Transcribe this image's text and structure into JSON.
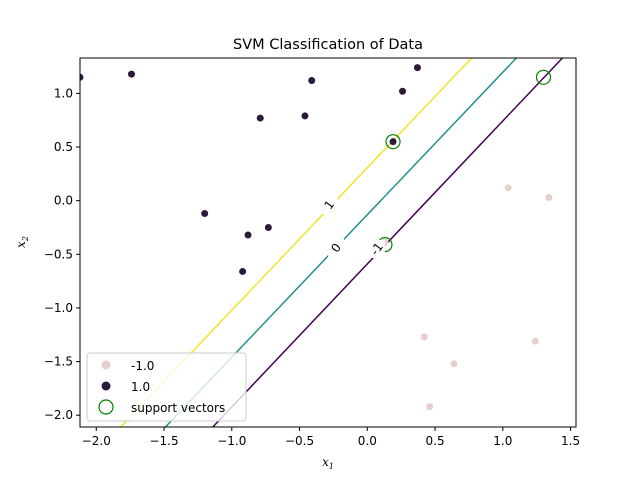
{
  "chart_data": {
    "type": "scatter",
    "title": "SVM Classification of Data",
    "xlabel": "x",
    "xlabel_sub": "1",
    "ylabel": "x",
    "ylabel_sub": "2",
    "xlim": [
      -2.12,
      1.54
    ],
    "ylim": [
      -2.11,
      1.33
    ],
    "xticks": [
      -2.0,
      -1.5,
      -1.0,
      -0.5,
      0.0,
      0.5,
      1.0,
      1.5
    ],
    "xtick_labels": [
      "−2.0",
      "−1.5",
      "−1.0",
      "−0.5",
      "0.0",
      "0.5",
      "1.0",
      "1.5"
    ],
    "yticks": [
      -2.0,
      -1.5,
      -1.0,
      -0.5,
      0.0,
      0.5,
      1.0
    ],
    "ytick_labels": [
      "−2.0",
      "−1.5",
      "−1.0",
      "−0.5",
      "0.0",
      "0.5",
      "1.0"
    ],
    "grid": false,
    "legend_position": "lower-left",
    "series": [
      {
        "name": "-1.0",
        "color": "#e9cfcb",
        "points": [
          [
            1.04,
            0.12
          ],
          [
            1.34,
            0.03
          ],
          [
            0.13,
            -0.39
          ],
          [
            0.42,
            -1.27
          ],
          [
            0.64,
            -1.52
          ],
          [
            1.24,
            -1.31
          ],
          [
            0.46,
            -1.92
          ]
        ]
      },
      {
        "name": "1.0",
        "color": "#2c1a3b",
        "points": [
          [
            -2.12,
            1.15
          ],
          [
            -1.74,
            1.18
          ],
          [
            0.37,
            1.24
          ],
          [
            -0.41,
            1.12
          ],
          [
            0.26,
            1.02
          ],
          [
            -0.79,
            0.77
          ],
          [
            -0.46,
            0.79
          ],
          [
            -1.2,
            -0.12
          ],
          [
            -0.73,
            -0.25
          ],
          [
            -0.88,
            -0.32
          ],
          [
            -0.92,
            -0.66
          ],
          [
            0.19,
            0.55
          ]
        ]
      }
    ],
    "support_vectors": {
      "name": "support vectors",
      "color": "#008000",
      "points": [
        [
          1.3,
          1.15
        ],
        [
          0.19,
          0.55
        ],
        [
          0.13,
          -0.41
        ]
      ]
    },
    "contours": [
      {
        "level": "1",
        "color": "#f0e52a",
        "p1": [
          -1.82,
          -2.11
        ],
        "p2": [
          0.77,
          1.33
        ]
      },
      {
        "level": "0",
        "color": "#21908d",
        "p1": [
          -1.49,
          -2.11
        ],
        "p2": [
          1.1,
          1.33
        ]
      },
      {
        "level": "-1",
        "color": "#440154",
        "p1": [
          -1.14,
          -2.11
        ],
        "p2": [
          1.44,
          1.33
        ]
      }
    ],
    "contour_label_points": [
      {
        "level": "1",
        "text": "1",
        "at": [
          -0.28,
          -0.04
        ]
      },
      {
        "level": "0",
        "text": "0",
        "at": [
          -0.23,
          -0.44
        ]
      },
      {
        "level": "-1",
        "text": "-1",
        "at": [
          0.07,
          -0.45
        ]
      }
    ]
  }
}
